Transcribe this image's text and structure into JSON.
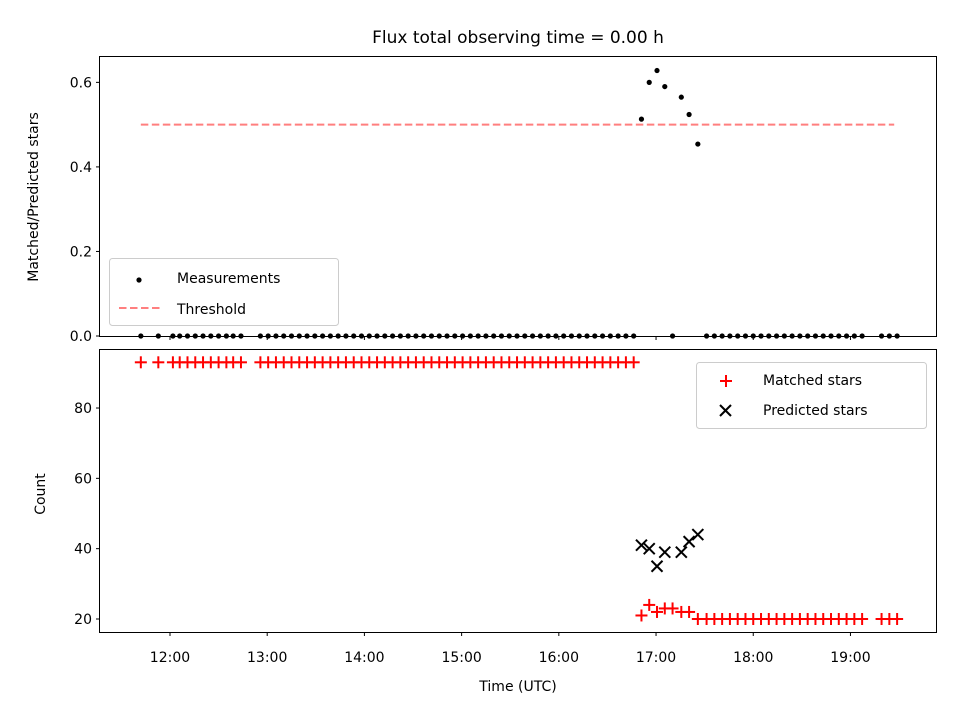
{
  "title": "Flux total observing time = 0.00 h",
  "chart_data": [
    {
      "type": "scatter",
      "panel": "top",
      "ylabel": "Matched/Predicted stars",
      "ylim": [
        0,
        0.66
      ],
      "yticks": [
        "0.0",
        "0.2",
        "0.4",
        "0.6"
      ],
      "ytick_values": [
        0,
        0.2,
        0.4,
        0.6
      ],
      "xlim": [
        11.28,
        19.88
      ],
      "grid": false,
      "legend_position": "lower-left",
      "legend": [
        {
          "label": "Measurements",
          "color": "#000000",
          "marker": "dot"
        },
        {
          "label": "Threshold",
          "color": "#ff7f7f",
          "marker": "dashed-line"
        }
      ],
      "threshold": {
        "name": "Threshold",
        "value": 0.5,
        "x_start": 11.7,
        "x_end": 19.45,
        "color": "#ff7f7f"
      },
      "series": [
        {
          "name": "Measurements",
          "color": "#000000",
          "x": [
            11.7,
            11.88,
            12.03,
            12.1,
            12.18,
            12.26,
            12.34,
            12.42,
            12.5,
            12.58,
            12.65,
            12.73,
            12.93,
            13.01,
            13.09,
            13.17,
            13.25,
            13.33,
            13.41,
            13.49,
            13.57,
            13.65,
            13.73,
            13.81,
            13.89,
            13.97,
            14.05,
            14.13,
            14.21,
            14.29,
            14.37,
            14.45,
            14.53,
            14.61,
            14.69,
            14.77,
            14.85,
            14.93,
            15.01,
            15.09,
            15.17,
            15.25,
            15.33,
            15.41,
            15.49,
            15.57,
            15.65,
            15.73,
            15.81,
            15.89,
            15.97,
            16.05,
            16.13,
            16.21,
            16.29,
            16.37,
            16.45,
            16.53,
            16.61,
            16.69,
            16.77,
            16.85,
            16.93,
            17.01,
            17.09,
            17.17,
            17.26,
            17.34,
            17.43,
            17.52,
            17.6,
            17.68,
            17.76,
            17.84,
            17.92,
            18.0,
            18.08,
            18.16,
            18.24,
            18.32,
            18.4,
            18.48,
            18.56,
            18.64,
            18.72,
            18.8,
            18.88,
            18.96,
            19.04,
            19.12,
            19.32,
            19.4,
            19.48
          ],
          "y": [
            0,
            0,
            0,
            0,
            0,
            0,
            0,
            0,
            0,
            0,
            0,
            0,
            0,
            0,
            0,
            0,
            0,
            0,
            0,
            0,
            0,
            0,
            0,
            0,
            0,
            0,
            0,
            0,
            0,
            0,
            0,
            0,
            0,
            0,
            0,
            0,
            0,
            0,
            0,
            0,
            0,
            0,
            0,
            0,
            0,
            0,
            0,
            0,
            0,
            0,
            0,
            0,
            0,
            0,
            0,
            0,
            0,
            0,
            0,
            0,
            0,
            0.513,
            0.6,
            0.628,
            0.59,
            0,
            0.565,
            0.524,
            0.454,
            0,
            0,
            0,
            0,
            0,
            0,
            0,
            0,
            0,
            0,
            0,
            0,
            0,
            0,
            0,
            0,
            0,
            0,
            0,
            0,
            0,
            0,
            0,
            0
          ]
        }
      ]
    },
    {
      "type": "scatter",
      "panel": "bottom",
      "xlabel": "Time (UTC)",
      "ylabel": "Count",
      "ylim": [
        16.3,
        96.5
      ],
      "yticks": [
        "20",
        "40",
        "60",
        "80"
      ],
      "ytick_values": [
        20,
        40,
        60,
        80
      ],
      "xlim": [
        11.28,
        19.88
      ],
      "xticks": [
        "12:00",
        "13:00",
        "14:00",
        "15:00",
        "16:00",
        "17:00",
        "18:00",
        "19:00"
      ],
      "xtick_values": [
        12,
        13,
        14,
        15,
        16,
        17,
        18,
        19
      ],
      "grid": false,
      "legend_position": "upper-right",
      "legend": [
        {
          "label": "Matched stars",
          "color": "#ff0000",
          "marker": "plus"
        },
        {
          "label": "Predicted stars",
          "color": "#000000",
          "marker": "x"
        }
      ],
      "series": [
        {
          "name": "Matched stars",
          "color": "#ff0000",
          "x": [
            11.7,
            11.88,
            12.03,
            12.1,
            12.18,
            12.26,
            12.34,
            12.42,
            12.5,
            12.58,
            12.65,
            12.73,
            12.93,
            13.01,
            13.09,
            13.17,
            13.25,
            13.33,
            13.41,
            13.49,
            13.57,
            13.65,
            13.73,
            13.81,
            13.89,
            13.97,
            14.05,
            14.13,
            14.21,
            14.29,
            14.37,
            14.45,
            14.53,
            14.61,
            14.69,
            14.77,
            14.85,
            14.93,
            15.01,
            15.09,
            15.17,
            15.25,
            15.33,
            15.41,
            15.49,
            15.57,
            15.65,
            15.73,
            15.81,
            15.89,
            15.97,
            16.05,
            16.13,
            16.21,
            16.29,
            16.37,
            16.45,
            16.53,
            16.61,
            16.69,
            16.77,
            16.85,
            16.93,
            17.01,
            17.09,
            17.17,
            17.26,
            17.34,
            17.43,
            17.52,
            17.6,
            17.68,
            17.76,
            17.84,
            17.92,
            18.0,
            18.08,
            18.16,
            18.24,
            18.32,
            18.4,
            18.48,
            18.56,
            18.64,
            18.72,
            18.8,
            18.88,
            18.96,
            19.04,
            19.12,
            19.32,
            19.4,
            19.48
          ],
          "y": [
            93,
            93,
            93,
            93,
            93,
            93,
            93,
            93,
            93,
            93,
            93,
            93,
            93,
            93,
            93,
            93,
            93,
            93,
            93,
            93,
            93,
            93,
            93,
            93,
            93,
            93,
            93,
            93,
            93,
            93,
            93,
            93,
            93,
            93,
            93,
            93,
            93,
            93,
            93,
            93,
            93,
            93,
            93,
            93,
            93,
            93,
            93,
            93,
            93,
            93,
            93,
            93,
            93,
            93,
            93,
            93,
            93,
            93,
            93,
            93,
            93,
            21,
            24,
            22,
            23,
            23,
            22,
            22,
            20,
            20,
            20,
            20,
            20,
            20,
            20,
            20,
            20,
            20,
            20,
            20,
            20,
            20,
            20,
            20,
            20,
            20,
            20,
            20,
            20,
            20,
            20,
            20,
            20
          ]
        },
        {
          "name": "Predicted stars",
          "color": "#000000",
          "x": [
            16.85,
            16.93,
            17.01,
            17.09,
            17.26,
            17.34,
            17.43
          ],
          "y": [
            41,
            40,
            35,
            39,
            39,
            42,
            44
          ]
        }
      ]
    }
  ]
}
